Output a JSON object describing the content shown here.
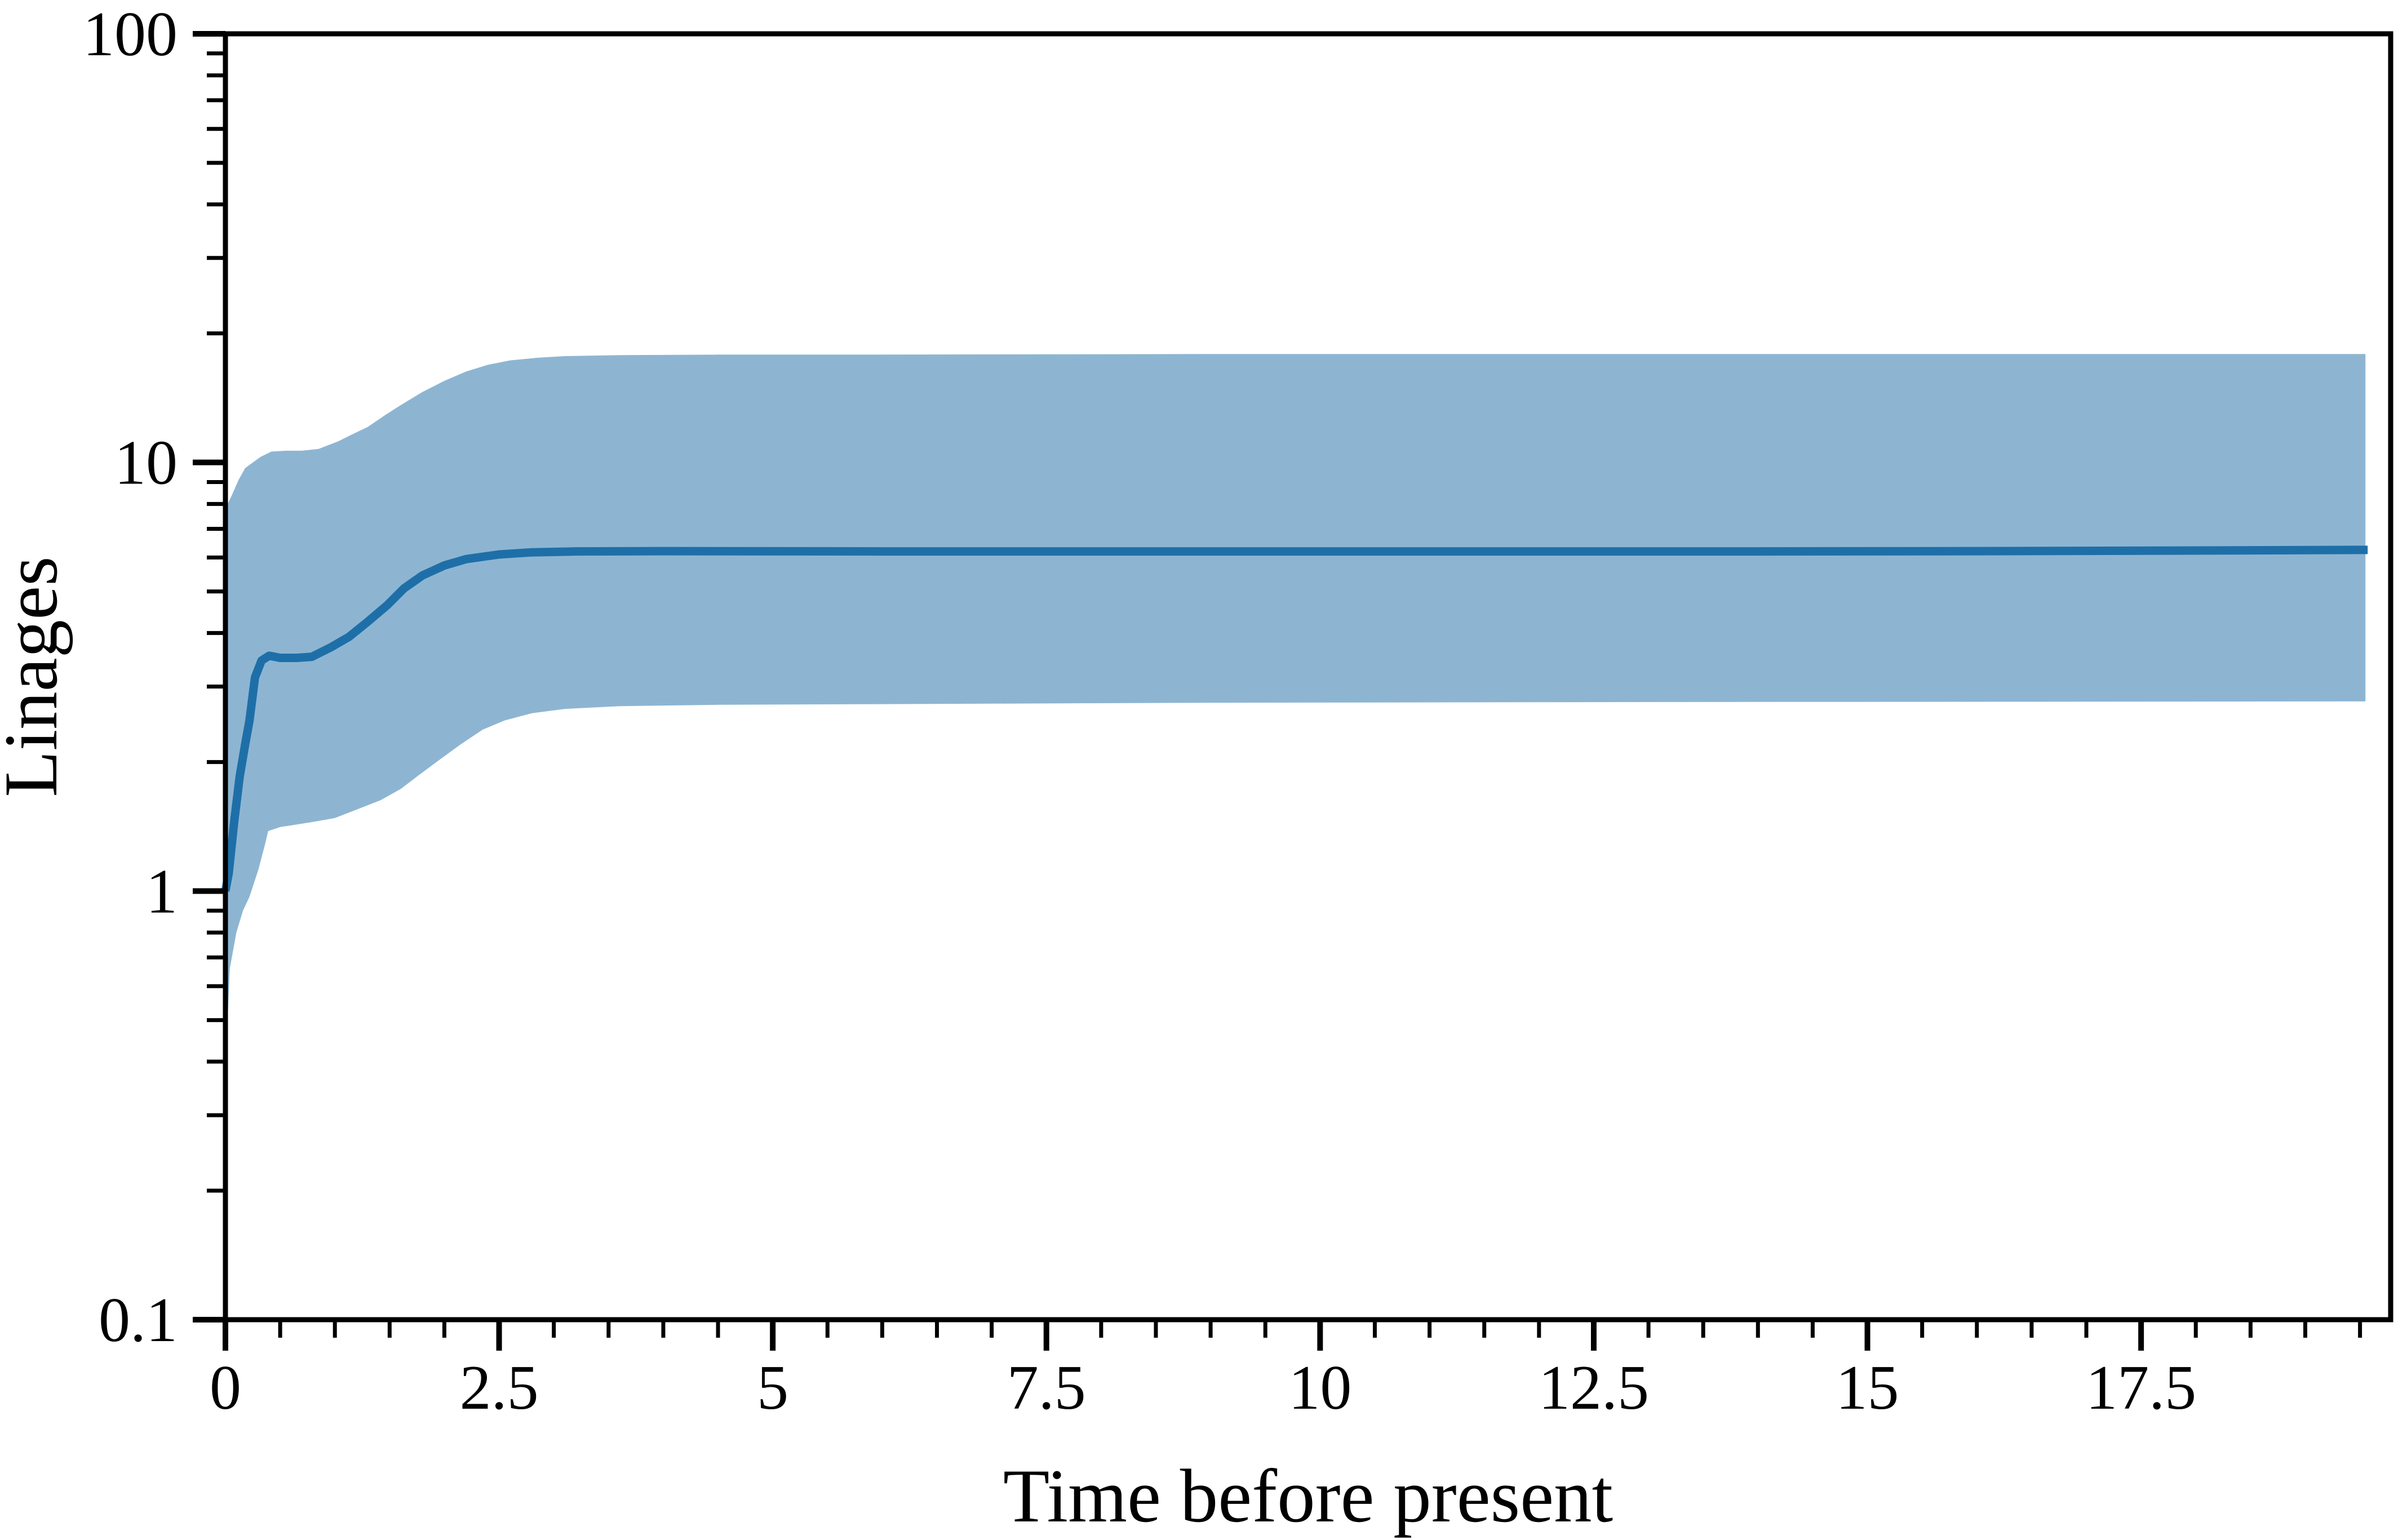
{
  "figure": {
    "xlabel": "Time before present",
    "ylabel": "Linages"
  },
  "chart_data": {
    "type": "area",
    "title": "",
    "xlabel": "Time before present",
    "ylabel": "Linages",
    "x_scale": "linear",
    "y_scale": "log",
    "xlim": [
      0,
      19.78
    ],
    "ylim": [
      0.1,
      100
    ],
    "grid": false,
    "legend": null,
    "x_major_ticks": [
      0,
      2.5,
      5,
      7.5,
      10,
      12.5,
      15,
      17.5
    ],
    "x_major_tick_labels": [
      "0",
      "2.5",
      "5",
      "7.5",
      "10",
      "12.5",
      "15",
      "17.5"
    ],
    "x_minor_tick_step": 0.5,
    "y_major_ticks": [
      0.1,
      1,
      10,
      100
    ],
    "y_major_tick_labels": [
      "0.1",
      "1",
      "10",
      "100"
    ],
    "y_minor_ticks": [
      0.2,
      0.3,
      0.4,
      0.5,
      0.6,
      0.7,
      0.8,
      0.9,
      2,
      3,
      4,
      5,
      6,
      7,
      8,
      9,
      20,
      30,
      40,
      50,
      60,
      70,
      80,
      90
    ],
    "colors": {
      "median_line": "#1E6FA8",
      "ci_band": "#8DB5D2",
      "axis": "#000000",
      "background": "#FFFFFF"
    },
    "data_x_end": 19.55,
    "series": [
      {
        "name": "median",
        "type": "line",
        "color": "#1E6FA8",
        "points": [
          [
            0,
            1.0
          ],
          [
            0.03,
            1.1
          ],
          [
            0.08,
            1.45
          ],
          [
            0.13,
            1.85
          ],
          [
            0.18,
            2.2
          ],
          [
            0.22,
            2.5
          ],
          [
            0.27,
            3.15
          ],
          [
            0.33,
            3.45
          ],
          [
            0.4,
            3.54
          ],
          [
            0.5,
            3.5
          ],
          [
            0.65,
            3.5
          ],
          [
            0.79,
            3.52
          ],
          [
            0.96,
            3.7
          ],
          [
            1.13,
            3.92
          ],
          [
            1.3,
            4.25
          ],
          [
            1.48,
            4.65
          ],
          [
            1.63,
            5.08
          ],
          [
            1.8,
            5.45
          ],
          [
            2.0,
            5.75
          ],
          [
            2.2,
            5.95
          ],
          [
            2.5,
            6.1
          ],
          [
            2.8,
            6.17
          ],
          [
            3.2,
            6.2
          ],
          [
            4.0,
            6.21
          ],
          [
            6.0,
            6.2
          ],
          [
            8.0,
            6.2
          ],
          [
            10.0,
            6.2
          ],
          [
            12.0,
            6.2
          ],
          [
            14.0,
            6.2
          ],
          [
            16.0,
            6.21
          ],
          [
            18.0,
            6.23
          ],
          [
            19.57,
            6.25
          ]
        ]
      },
      {
        "name": "hpd_interval",
        "type": "band",
        "color": "#8DB5D2",
        "upper": [
          [
            0,
            7.8
          ],
          [
            0.06,
            8.4
          ],
          [
            0.12,
            9.1
          ],
          [
            0.18,
            9.7
          ],
          [
            0.24,
            9.95
          ],
          [
            0.32,
            10.3
          ],
          [
            0.42,
            10.6
          ],
          [
            0.55,
            10.65
          ],
          [
            0.7,
            10.65
          ],
          [
            0.85,
            10.75
          ],
          [
            1.03,
            11.2
          ],
          [
            1.15,
            11.6
          ],
          [
            1.3,
            12.1
          ],
          [
            1.46,
            12.9
          ],
          [
            1.6,
            13.6
          ],
          [
            1.8,
            14.6
          ],
          [
            2.0,
            15.5
          ],
          [
            2.2,
            16.3
          ],
          [
            2.4,
            16.9
          ],
          [
            2.6,
            17.3
          ],
          [
            2.85,
            17.55
          ],
          [
            3.1,
            17.7
          ],
          [
            3.6,
            17.8
          ],
          [
            4.5,
            17.85
          ],
          [
            6.0,
            17.85
          ],
          [
            9.0,
            17.9
          ],
          [
            13.0,
            17.9
          ],
          [
            19.55,
            17.9
          ]
        ],
        "lower": [
          [
            0,
            0.25
          ],
          [
            0.02,
            0.5
          ],
          [
            0.04,
            0.66
          ],
          [
            0.1,
            0.8
          ],
          [
            0.16,
            0.9
          ],
          [
            0.22,
            0.97
          ],
          [
            0.3,
            1.12
          ],
          [
            0.36,
            1.28
          ],
          [
            0.39,
            1.38
          ],
          [
            0.5,
            1.41
          ],
          [
            0.65,
            1.43
          ],
          [
            0.8,
            1.45
          ],
          [
            1.0,
            1.48
          ],
          [
            1.2,
            1.55
          ],
          [
            1.42,
            1.63
          ],
          [
            1.6,
            1.73
          ],
          [
            1.75,
            1.85
          ],
          [
            1.95,
            2.02
          ],
          [
            2.15,
            2.2
          ],
          [
            2.35,
            2.38
          ],
          [
            2.55,
            2.5
          ],
          [
            2.8,
            2.6
          ],
          [
            3.1,
            2.66
          ],
          [
            3.6,
            2.7
          ],
          [
            4.5,
            2.72
          ],
          [
            6.0,
            2.73
          ],
          [
            9.0,
            2.75
          ],
          [
            13.0,
            2.76
          ],
          [
            19.55,
            2.77
          ]
        ]
      }
    ]
  }
}
